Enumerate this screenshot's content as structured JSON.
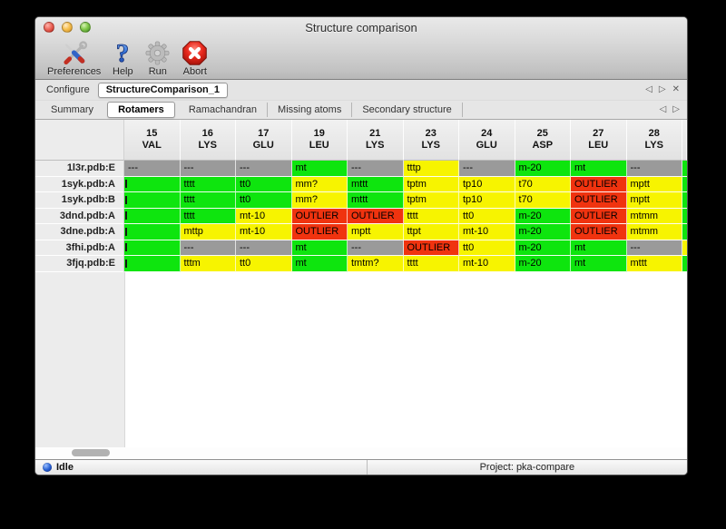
{
  "window": {
    "title": "Structure comparison"
  },
  "toolbar": {
    "items": [
      {
        "label": "Preferences",
        "icon": "preferences-tools-icon"
      },
      {
        "label": "Help",
        "icon": "help-question-icon"
      },
      {
        "label": "Run",
        "icon": "run-gear-icon"
      },
      {
        "label": "Abort",
        "icon": "abort-stop-icon"
      }
    ]
  },
  "configure": {
    "label": "Configure",
    "value": "StructureComparison_1"
  },
  "icons": {
    "prev": "◁",
    "next": "▷",
    "close": "✕"
  },
  "tabs": {
    "items": [
      "Summary",
      "Rotamers",
      "Ramachandran",
      "Missing atoms",
      "Secondary structure"
    ],
    "selected": "Rotamers"
  },
  "colors": {
    "green": "#0ee50e",
    "yellow": "#f7f400",
    "red": "#f0330f",
    "gray": "#9a9a9a"
  },
  "table": {
    "columns": [
      {
        "num": "15",
        "res": "VAL"
      },
      {
        "num": "16",
        "res": "LYS"
      },
      {
        "num": "17",
        "res": "GLU"
      },
      {
        "num": "19",
        "res": "LEU"
      },
      {
        "num": "21",
        "res": "LYS"
      },
      {
        "num": "23",
        "res": "LYS"
      },
      {
        "num": "24",
        "res": "GLU"
      },
      {
        "num": "25",
        "res": "ASP"
      },
      {
        "num": "27",
        "res": "LEU"
      },
      {
        "num": "28",
        "res": "LYS"
      }
    ],
    "rows": [
      {
        "label": "1l3r.pdb:E",
        "overflow": "green",
        "cells": [
          {
            "t": "---",
            "c": "gray"
          },
          {
            "t": "---",
            "c": "gray"
          },
          {
            "t": "---",
            "c": "gray"
          },
          {
            "t": "mt",
            "c": "green"
          },
          {
            "t": "---",
            "c": "gray"
          },
          {
            "t": "tttp",
            "c": "yellow"
          },
          {
            "t": "---",
            "c": "gray"
          },
          {
            "t": "m-20",
            "c": "green"
          },
          {
            "t": "mt",
            "c": "green"
          },
          {
            "t": "---",
            "c": "gray"
          }
        ]
      },
      {
        "label": "1syk.pdb:A",
        "overflow": "green",
        "cells": [
          {
            "t": "",
            "c": "green",
            "clipped": true
          },
          {
            "t": "tttt",
            "c": "green"
          },
          {
            "t": "tt0",
            "c": "green"
          },
          {
            "t": "mm?",
            "c": "yellow"
          },
          {
            "t": "mttt",
            "c": "green"
          },
          {
            "t": "tptm",
            "c": "yellow"
          },
          {
            "t": "tp10",
            "c": "yellow"
          },
          {
            "t": "t70",
            "c": "yellow"
          },
          {
            "t": "OUTLIER",
            "c": "red"
          },
          {
            "t": "mptt",
            "c": "yellow"
          }
        ]
      },
      {
        "label": "1syk.pdb:B",
        "overflow": "green",
        "cells": [
          {
            "t": "",
            "c": "green",
            "clipped": true
          },
          {
            "t": "tttt",
            "c": "green"
          },
          {
            "t": "tt0",
            "c": "green"
          },
          {
            "t": "mm?",
            "c": "yellow"
          },
          {
            "t": "mttt",
            "c": "green"
          },
          {
            "t": "tptm",
            "c": "yellow"
          },
          {
            "t": "tp10",
            "c": "yellow"
          },
          {
            "t": "t70",
            "c": "yellow"
          },
          {
            "t": "OUTLIER",
            "c": "red"
          },
          {
            "t": "mptt",
            "c": "yellow"
          }
        ]
      },
      {
        "label": "3dnd.pdb:A",
        "overflow": "green",
        "cells": [
          {
            "t": "",
            "c": "green",
            "clipped": true
          },
          {
            "t": "tttt",
            "c": "green"
          },
          {
            "t": "mt-10",
            "c": "yellow"
          },
          {
            "t": "OUTLIER",
            "c": "red"
          },
          {
            "t": "OUTLIER",
            "c": "red"
          },
          {
            "t": "tttt",
            "c": "yellow"
          },
          {
            "t": "tt0",
            "c": "yellow"
          },
          {
            "t": "m-20",
            "c": "green"
          },
          {
            "t": "OUTLIER",
            "c": "red"
          },
          {
            "t": "mtmm",
            "c": "yellow"
          }
        ]
      },
      {
        "label": "3dne.pdb:A",
        "overflow": "green",
        "cells": [
          {
            "t": "",
            "c": "green",
            "clipped": true
          },
          {
            "t": "mttp",
            "c": "yellow"
          },
          {
            "t": "mt-10",
            "c": "yellow"
          },
          {
            "t": "OUTLIER",
            "c": "red"
          },
          {
            "t": "mptt",
            "c": "yellow"
          },
          {
            "t": "ttpt",
            "c": "yellow"
          },
          {
            "t": "mt-10",
            "c": "yellow"
          },
          {
            "t": "m-20",
            "c": "green"
          },
          {
            "t": "OUTLIER",
            "c": "red"
          },
          {
            "t": "mtmm",
            "c": "yellow"
          }
        ]
      },
      {
        "label": "3fhi.pdb:A",
        "overflow": "yellow",
        "cells": [
          {
            "t": "",
            "c": "green",
            "clipped": true
          },
          {
            "t": "---",
            "c": "gray"
          },
          {
            "t": "---",
            "c": "gray"
          },
          {
            "t": "mt",
            "c": "green"
          },
          {
            "t": "---",
            "c": "gray"
          },
          {
            "t": "OUTLIER",
            "c": "red"
          },
          {
            "t": "tt0",
            "c": "yellow"
          },
          {
            "t": "m-20",
            "c": "green"
          },
          {
            "t": "mt",
            "c": "green"
          },
          {
            "t": "---",
            "c": "gray"
          }
        ]
      },
      {
        "label": "3fjq.pdb:E",
        "overflow": "green",
        "cells": [
          {
            "t": "",
            "c": "green",
            "clipped": true
          },
          {
            "t": "tttm",
            "c": "yellow"
          },
          {
            "t": "tt0",
            "c": "yellow"
          },
          {
            "t": "mt",
            "c": "green"
          },
          {
            "t": "tmtm?",
            "c": "yellow"
          },
          {
            "t": "tttt",
            "c": "yellow"
          },
          {
            "t": "mt-10",
            "c": "yellow"
          },
          {
            "t": "m-20",
            "c": "green"
          },
          {
            "t": "mt",
            "c": "green"
          },
          {
            "t": "mttt",
            "c": "yellow"
          }
        ]
      }
    ]
  },
  "statusbar": {
    "status": "Idle",
    "project": "Project: pka-compare"
  }
}
